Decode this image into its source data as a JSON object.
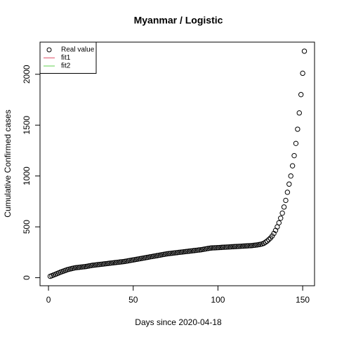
{
  "chart_data": {
    "type": "scatter",
    "title": "Myanmar / Logistic",
    "x_label": "Days since 2020-04-18",
    "y_label": "Cumulative Confirmed cases",
    "xlim": [
      -5,
      157
    ],
    "ylim": [
      -79,
      2316
    ],
    "xticks": [
      0,
      50,
      100,
      150
    ],
    "yticks": [
      0,
      500,
      1000,
      1500,
      2000
    ],
    "legend_position": "topleft",
    "legend": [
      {
        "label": "Real value",
        "marker": "circle",
        "color": "#000000"
      },
      {
        "label": "fit1",
        "marker": "line",
        "color": "#df536b"
      },
      {
        "label": "fit2",
        "marker": "line",
        "color": "#61d04f"
      }
    ],
    "series": [
      {
        "name": "Real value",
        "color": "#000000",
        "x": [
          1,
          2,
          3,
          4,
          5,
          6,
          7,
          8,
          9,
          10,
          11,
          12,
          13,
          14,
          15,
          16,
          17,
          18,
          19,
          20,
          21,
          22,
          23,
          24,
          25,
          26,
          27,
          28,
          29,
          30,
          31,
          32,
          33,
          34,
          35,
          36,
          37,
          38,
          39,
          40,
          41,
          42,
          43,
          44,
          45,
          46,
          47,
          48,
          49,
          50,
          51,
          52,
          53,
          54,
          55,
          56,
          57,
          58,
          59,
          60,
          61,
          62,
          63,
          64,
          65,
          66,
          67,
          68,
          69,
          70,
          71,
          72,
          73,
          74,
          75,
          76,
          77,
          78,
          79,
          80,
          81,
          82,
          83,
          84,
          85,
          86,
          87,
          88,
          89,
          90,
          91,
          92,
          93,
          94,
          95,
          96,
          97,
          98,
          99,
          100,
          101,
          102,
          103,
          104,
          105,
          106,
          107,
          108,
          109,
          110,
          111,
          112,
          113,
          114,
          115,
          116,
          117,
          118,
          119,
          120,
          121,
          122,
          123,
          124,
          125,
          126,
          127,
          128,
          129,
          130,
          131,
          132,
          133,
          134,
          135,
          136,
          137,
          138,
          139,
          140,
          141,
          142,
          143,
          144,
          145,
          146,
          147,
          148,
          149,
          150,
          151
        ],
        "values": [
          14,
          20,
          27,
          33,
          40,
          47,
          54,
          60,
          66,
          72,
          78,
          83,
          87,
          91,
          95,
          98,
          100,
          102,
          104,
          106,
          108,
          110,
          113,
          116,
          119,
          122,
          124,
          126,
          128,
          130,
          132,
          134,
          136,
          138,
          140,
          142,
          144,
          146,
          148,
          150,
          152,
          154,
          156,
          158,
          160,
          163,
          166,
          169,
          172,
          175,
          178,
          181,
          184,
          187,
          190,
          193,
          196,
          199,
          202,
          205,
          208,
          211,
          214,
          217,
          220,
          223,
          226,
          229,
          232,
          235,
          237,
          239,
          241,
          243,
          245,
          247,
          249,
          251,
          253,
          255,
          257,
          259,
          261,
          263,
          265,
          267,
          269,
          271,
          273,
          275,
          278,
          281,
          284,
          287,
          290,
          292,
          293,
          294,
          295,
          296,
          297,
          298,
          299,
          300,
          301,
          302,
          303,
          304,
          305,
          306,
          307,
          308,
          309,
          310,
          311,
          312,
          313,
          314,
          315,
          316,
          318,
          320,
          322,
          325,
          328,
          332,
          338,
          348,
          360,
          375,
          390,
          410,
          435,
          465,
          500,
          540,
          585,
          635,
          695,
          760,
          840,
          920,
          1000,
          1100,
          1200,
          1320,
          1460,
          1620,
          1800,
          2010,
          2227
        ]
      }
    ]
  }
}
